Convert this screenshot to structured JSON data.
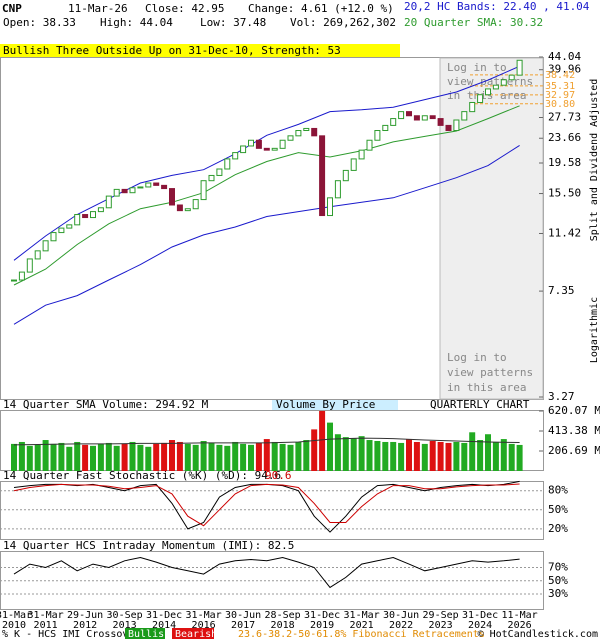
{
  "header": {
    "symbol": "CNP",
    "date": "11-Mar-26",
    "close": "Close: 42.95",
    "change": "Change: 4.61 (+12.0 %)",
    "open": "Open: 38.33",
    "high": "High: 44.04",
    "low": "Low: 37.48",
    "volume": "Vol: 269,262,302",
    "bands": "20,2 HC Bands: 22.40 , 41.04",
    "sma": "20 Quarter SMA: 30.32"
  },
  "chart_data": [
    {
      "type": "candlestick",
      "title": "Bullish Three Outside Up on 31-Dec-10, Strength: 53",
      "categories": [
        [
          "31-Mar",
          "2010"
        ],
        null,
        null,
        null,
        [
          "31-Mar",
          "2011"
        ],
        null,
        null,
        null,
        null,
        [
          "29-Jun",
          "2012"
        ],
        null,
        null,
        null,
        null,
        [
          "30-Sep",
          "2013"
        ],
        null,
        null,
        null,
        null,
        [
          "31-Dec",
          "2014"
        ],
        null,
        null,
        null,
        null,
        [
          "31-Mar",
          "2016"
        ],
        null,
        null,
        null,
        null,
        [
          "30-Jun",
          "2017"
        ],
        null,
        null,
        null,
        null,
        [
          "28-Sep",
          "2018"
        ],
        null,
        null,
        null,
        null,
        [
          "31-Dec",
          "2019"
        ],
        null,
        null,
        null,
        null,
        [
          "31-Mar",
          "2021"
        ],
        null,
        null,
        null,
        null,
        [
          "30-Jun",
          "2022"
        ],
        null,
        null,
        null,
        null,
        [
          "29-Sep",
          "2023"
        ],
        null,
        null,
        null,
        null,
        [
          "31-Dec",
          "2024"
        ],
        null,
        null,
        null,
        null,
        [
          "11-Mar",
          "2026"
        ]
      ],
      "close": [
        8.0,
        8.5,
        9.4,
        10.0,
        10.8,
        11.5,
        11.9,
        12.2,
        13.2,
        12.9,
        13.5,
        13.9,
        15.2,
        16.0,
        15.6,
        16.2,
        16.3,
        16.8,
        16.5,
        16.1,
        14.2,
        13.6,
        13.8,
        14.8,
        17.1,
        17.8,
        18.7,
        20.2,
        21.2,
        22.3,
        23.3,
        21.9,
        21.6,
        21.9,
        23.3,
        24.1,
        25.1,
        25.5,
        24.1,
        13.1,
        15.0,
        17.1,
        18.5,
        20.2,
        21.6,
        23.3,
        25.1,
        26.1,
        27.5,
        29.0,
        28.1,
        27.2,
        28.1,
        27.5,
        26.1,
        25.1,
        27.2,
        29.0,
        31.1,
        33.0,
        34.5,
        35.5,
        37.0,
        38.33,
        42.95
      ],
      "colors": {
        "up": "#2e9b2e",
        "down": "#8b1538"
      },
      "log_scale": true,
      "ylim": [
        3.27,
        44.04
      ],
      "yticks": [
        3.27,
        7.35,
        11.42,
        {
          "value": 15.5,
          "label": "15.50"
        },
        19.58,
        23.66,
        27.73,
        39.96,
        44.04
      ],
      "overlays": [
        {
          "x": [
            0,
            4,
            8,
            12,
            16,
            20,
            24,
            28,
            32,
            36,
            40,
            44,
            48,
            52,
            56,
            60,
            64
          ],
          "values": [
            9.3,
            11.2,
            13.2,
            14.9,
            16.8,
            17.8,
            18.6,
            21.0,
            24.2,
            26.3,
            29.0,
            29.4,
            30.0,
            31.8,
            33.7,
            36.9,
            41.04
          ],
          "color": "#1a1acc"
        },
        {
          "x": [
            0,
            4,
            8,
            12,
            16,
            20,
            24,
            28,
            32,
            36,
            40,
            44,
            48,
            52,
            56,
            60,
            64
          ],
          "values": [
            7.7,
            8.7,
            10.5,
            12.3,
            13.8,
            14.5,
            15.6,
            17.9,
            19.8,
            21.2,
            20.5,
            21.5,
            23.0,
            24.0,
            25.0,
            27.5,
            30.32
          ],
          "color": "#2e9b2e"
        },
        {
          "x": [
            0,
            4,
            8,
            12,
            16,
            20,
            24,
            28,
            32,
            36,
            40,
            44,
            48,
            52,
            56,
            60,
            64
          ],
          "values": [
            5.7,
            6.6,
            7.1,
            8.0,
            9.0,
            10.3,
            11.3,
            12.0,
            13.0,
            13.5,
            14.0,
            14.5,
            15.0,
            16.2,
            17.5,
            19.2,
            22.4
          ],
          "color": "#1a1acc"
        }
      ],
      "fib_levels": [
        38.42,
        35.31,
        32.97,
        {
          "value": 30.8,
          "label": "30.80"
        }
      ],
      "fib_color": "#f0a030",
      "notice": [
        "Log in to",
        "view patterns",
        "in this area"
      ],
      "side_notes": [
        "Split and Dividend Adjusted",
        "Logarithmic"
      ]
    },
    {
      "type": "bar",
      "title": "14 Quarter SMA Volume: 294.92 M",
      "subtitle": "Volume By Price",
      "label": "QUARTERLY CHART",
      "values": [
        280,
        300,
        260,
        270,
        320,
        280,
        290,
        250,
        300,
        270,
        260,
        280,
        290,
        260,
        280,
        300,
        270,
        250,
        280,
        290,
        320,
        300,
        280,
        270,
        310,
        290,
        270,
        260,
        300,
        280,
        270,
        290,
        330,
        300,
        280,
        270,
        300,
        320,
        430,
        620,
        500,
        380,
        350,
        340,
        360,
        320,
        310,
        300,
        300,
        290,
        330,
        300,
        280,
        310,
        300,
        290,
        300,
        290,
        400,
        320,
        380,
        300,
        330,
        280,
        269.26
      ],
      "ylim": [
        0,
        620.07
      ],
      "yticks": [
        {
          "value": 206.69,
          "label": "206.69 M"
        },
        {
          "value": 413.38,
          "label": "413.38 M"
        },
        {
          "value": 620.07,
          "label": "620.07 M"
        }
      ],
      "sma": {
        "x": [
          0,
          4,
          8,
          12,
          16,
          20,
          24,
          28,
          32,
          36,
          40,
          44,
          48,
          52,
          56,
          60,
          64
        ],
        "values": [
          270,
          275,
          280,
          280,
          285,
          285,
          290,
          290,
          290,
          300,
          330,
          340,
          335,
          320,
          310,
          300,
          294.92
        ],
        "color": "#333333"
      }
    },
    {
      "type": "line",
      "title": "14 Quarter Fast Stochastic (%K) (%D): 94.6",
      "annotation": "90.6",
      "x": [
        0,
        2,
        4,
        6,
        8,
        10,
        12,
        14,
        16,
        18,
        20,
        22,
        24,
        26,
        28,
        30,
        32,
        34,
        36,
        38,
        40,
        42,
        44,
        46,
        48,
        50,
        52,
        54,
        56,
        58,
        60,
        62,
        64
      ],
      "series": [
        {
          "values": [
            85,
            88,
            90,
            90,
            88,
            90,
            85,
            80,
            88,
            90,
            60,
            20,
            30,
            70,
            85,
            90,
            90,
            88,
            80,
            40,
            15,
            40,
            70,
            88,
            90,
            85,
            80,
            85,
            88,
            90,
            88,
            90,
            94.6
          ],
          "color": "#000000"
        },
        {
          "values": [
            80,
            85,
            88,
            90,
            89,
            89,
            87,
            83,
            85,
            88,
            75,
            40,
            25,
            50,
            75,
            88,
            90,
            89,
            85,
            60,
            30,
            30,
            55,
            75,
            88,
            88,
            83,
            83,
            86,
            88,
            89,
            89,
            90.6
          ],
          "color": "#cc0000"
        }
      ],
      "ylim": [
        0,
        100
      ],
      "yticks": [
        {
          "value": 20,
          "label": "20%"
        },
        {
          "value": 50,
          "label": "50%"
        },
        {
          "value": 80,
          "label": "80%"
        }
      ]
    },
    {
      "type": "line",
      "title": "14 Quarter HCS Intraday Momentum (IMI): 82.5",
      "x": [
        0,
        2,
        4,
        6,
        8,
        10,
        12,
        14,
        16,
        18,
        20,
        22,
        24,
        26,
        28,
        30,
        32,
        34,
        36,
        38,
        40,
        42,
        44,
        46,
        48,
        50,
        52,
        54,
        56,
        58,
        60,
        62,
        64
      ],
      "series": [
        {
          "values": [
            60,
            75,
            70,
            80,
            65,
            75,
            70,
            80,
            85,
            78,
            70,
            65,
            60,
            75,
            80,
            82,
            80,
            85,
            78,
            70,
            40,
            55,
            75,
            80,
            85,
            75,
            65,
            70,
            75,
            80,
            78,
            80,
            82.5
          ],
          "color": "#000000"
        }
      ],
      "ylim": [
        0,
        100
      ],
      "yticks": [
        {
          "value": 30,
          "label": "30%"
        },
        {
          "value": 50,
          "label": "50%"
        },
        {
          "value": 70,
          "label": "70%"
        }
      ]
    }
  ],
  "footer": {
    "legend": "% K - HCS IMI Crossover,",
    "bullish": "Bullish",
    "bearish": "Bearish",
    "fib": "23.6-38.2-50-61.8% Fibonacci Retracements",
    "copyright": "© HotCandlestick.com"
  }
}
